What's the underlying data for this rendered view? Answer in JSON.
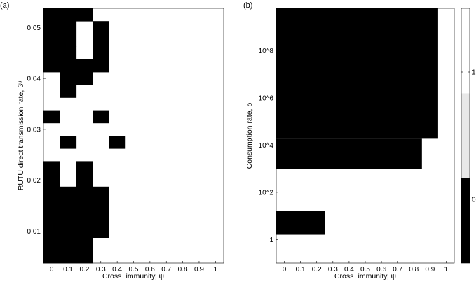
{
  "chart_data": [
    {
      "type": "heatmap",
      "panel_label": "(a)",
      "xlabel": "Cross−immunity, ψ",
      "ylabel": "RUTU direct transmission rate, βᵘ",
      "x": [
        0,
        0.1,
        0.2,
        0.3,
        0.4,
        0.5,
        0.6,
        0.7,
        0.8,
        0.9,
        1
      ],
      "x_tick_labels": [
        "0",
        "0.1",
        "0.2",
        "0.3",
        "0.4",
        "0.5",
        "0.6",
        "0.7",
        "0.8",
        "0.9",
        "1"
      ],
      "y": [
        0.005,
        0.0075,
        0.01,
        0.0125,
        0.015,
        0.0175,
        0.02,
        0.0225,
        0.025,
        0.0275,
        0.03,
        0.0325,
        0.035,
        0.0375,
        0.04,
        0.0425,
        0.045,
        0.0475,
        0.05,
        0.0525
      ],
      "y_ticks": [
        0.01,
        0.02,
        0.03,
        0.04,
        0.05
      ],
      "y_tick_labels": [
        "0.01",
        "0.02",
        "0.03",
        "0.04",
        "0.05"
      ],
      "values_rows_top_to_bottom": [
        [
          0,
          0,
          0,
          1,
          1,
          1,
          1,
          1,
          1,
          1,
          1
        ],
        [
          0,
          0,
          1,
          0,
          1,
          1,
          1,
          1,
          1,
          1,
          1
        ],
        [
          0,
          0,
          1,
          0,
          1,
          1,
          1,
          1,
          1,
          1,
          1
        ],
        [
          0,
          0,
          1,
          0,
          1,
          1,
          1,
          1,
          1,
          1,
          1
        ],
        [
          0,
          0,
          0,
          0,
          1,
          1,
          1,
          1,
          1,
          1,
          1
        ],
        [
          1,
          0,
          0,
          1,
          1,
          1,
          1,
          1,
          1,
          1,
          1
        ],
        [
          1,
          0,
          1,
          1,
          1,
          1,
          1,
          1,
          1,
          1,
          1
        ],
        [
          1,
          1,
          1,
          1,
          1,
          1,
          1,
          1,
          1,
          1,
          1
        ],
        [
          0,
          1,
          1,
          0,
          1,
          1,
          1,
          1,
          1,
          1,
          1
        ],
        [
          1,
          1,
          1,
          1,
          1,
          1,
          1,
          1,
          1,
          1,
          1
        ],
        [
          1,
          0,
          1,
          1,
          0,
          1,
          1,
          1,
          1,
          1,
          1
        ],
        [
          1,
          1,
          1,
          1,
          1,
          1,
          1,
          1,
          1,
          1,
          1
        ],
        [
          0,
          1,
          0,
          1,
          1,
          1,
          1,
          1,
          1,
          1,
          1
        ],
        [
          0,
          1,
          0,
          1,
          1,
          1,
          1,
          1,
          1,
          1,
          1
        ],
        [
          0,
          0,
          0,
          0,
          1,
          1,
          1,
          1,
          1,
          1,
          1
        ],
        [
          0,
          0,
          0,
          0,
          1,
          1,
          1,
          1,
          1,
          1,
          1
        ],
        [
          0,
          0,
          0,
          0,
          1,
          1,
          1,
          1,
          1,
          1,
          1
        ],
        [
          0,
          0,
          0,
          0,
          1,
          1,
          1,
          1,
          1,
          1,
          1
        ],
        [
          0,
          0,
          0,
          1,
          1,
          1,
          1,
          1,
          1,
          1,
          1
        ],
        [
          0,
          0,
          0,
          1,
          1,
          1,
          1,
          1,
          1,
          1,
          1
        ]
      ]
    },
    {
      "type": "heatmap",
      "panel_label": "(b)",
      "xlabel": "Cross−immunity, ψ",
      "ylabel": "Consumption rate, ρ",
      "x": [
        0,
        0.1,
        0.2,
        0.3,
        0.4,
        0.5,
        0.6,
        0.7,
        0.8,
        0.9,
        1
      ],
      "x_tick_labels": [
        "0",
        "0.1",
        "0.2",
        "0.3",
        "0.4",
        "0.5",
        "0.6",
        "0.7",
        "0.8",
        "0.9",
        "1"
      ],
      "y_tick_labels": [
        "1",
        "10^2",
        "10^4",
        "10^6",
        "10^8"
      ],
      "y_tick_log10": [
        0,
        2,
        4,
        6,
        8
      ],
      "y_range_log10": [
        -1,
        9.8
      ],
      "black_regions": [
        {
          "x_from": 0,
          "x_to": 0.95,
          "log10_y_from": 4.3,
          "log10_y_to": 9.8
        },
        {
          "x_from": 0,
          "x_to": 0.85,
          "log10_y_from": 3.0,
          "log10_y_to": 4.3
        },
        {
          "x_from": 0,
          "x_to": 0.25,
          "log10_y_from": 0.2,
          "log10_y_to": 1.2
        }
      ]
    }
  ],
  "colorbar": {
    "tick_labels": [
      "1",
      "0"
    ],
    "tick_values": [
      1,
      0
    ],
    "range": [
      -0.5,
      1.5
    ],
    "colors": [
      "#000000",
      "#ffffff"
    ],
    "levels": 3
  }
}
